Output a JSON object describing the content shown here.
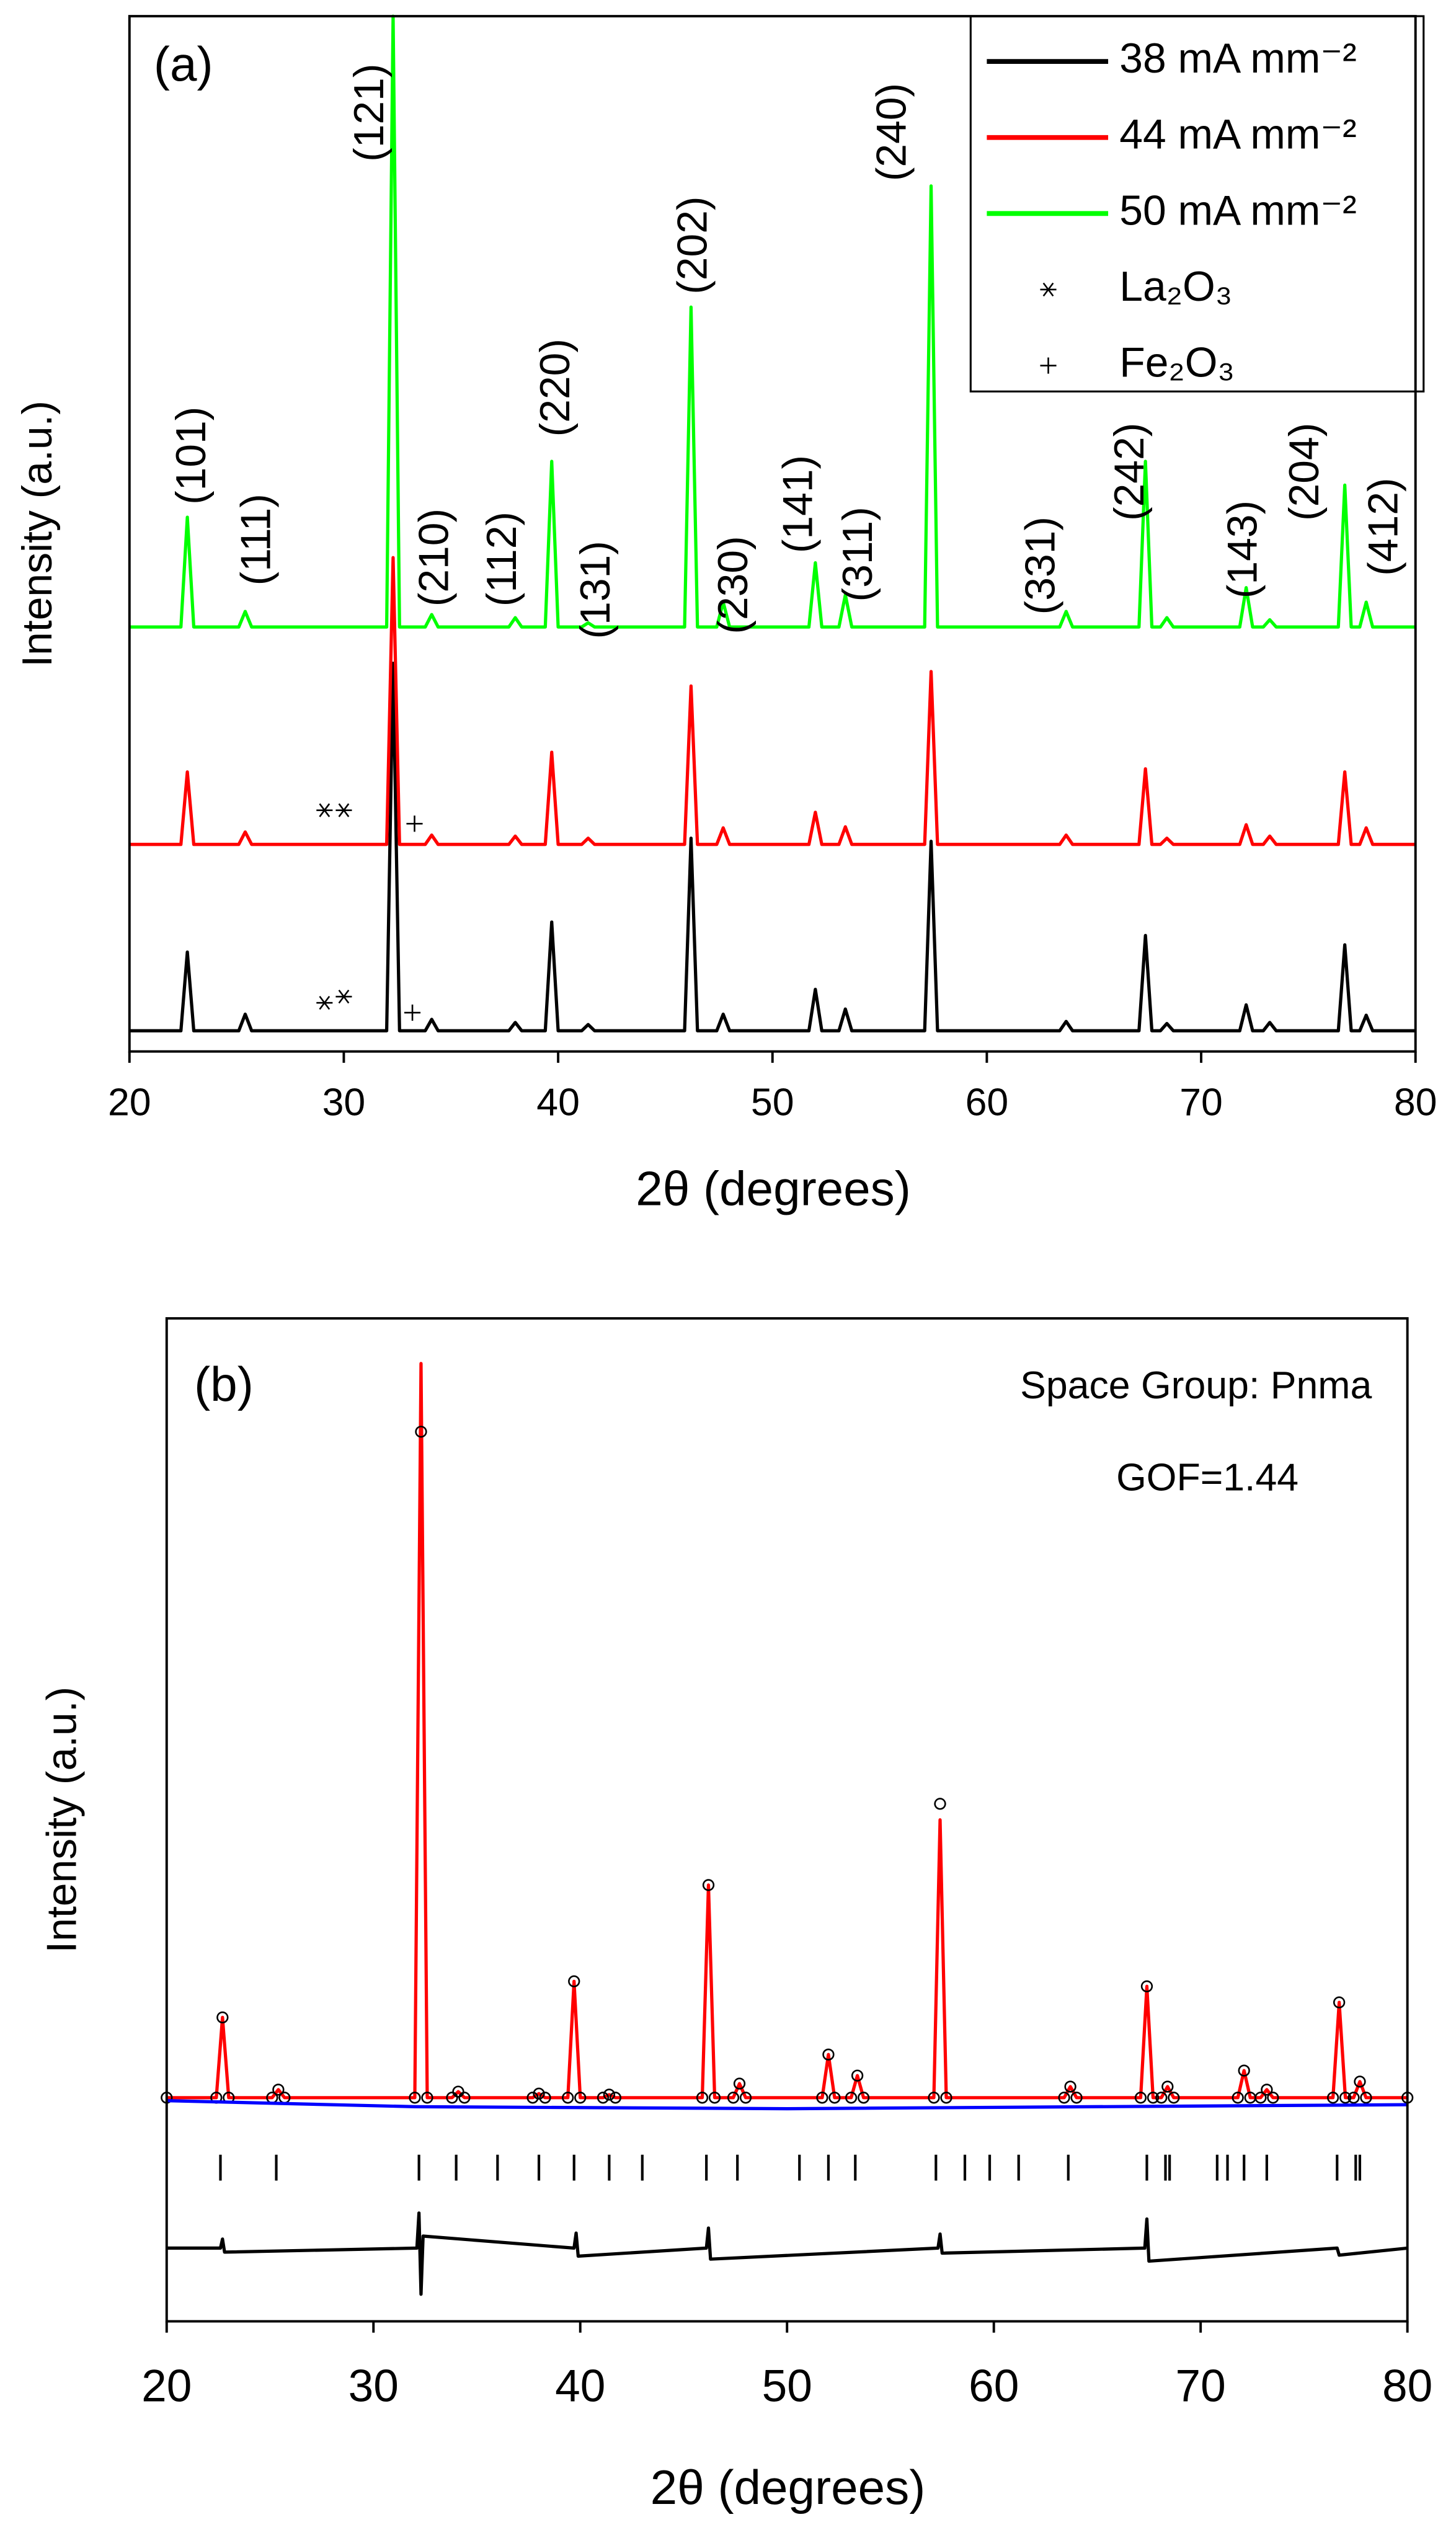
{
  "chart_data": [
    {
      "type": "line",
      "panel_label": "(a)",
      "xlabel": "2θ (degrees)",
      "ylabel": "Intensity (a.u.)",
      "xlim": [
        20,
        80
      ],
      "xticks": [
        20,
        30,
        40,
        50,
        60,
        70,
        80
      ],
      "ylim": [
        0,
        100
      ],
      "x": [
        20,
        22.4,
        22.7,
        23.0,
        25.1,
        25.4,
        25.7,
        32.0,
        32.3,
        32.6,
        33.8,
        34.1,
        34.4,
        37.7,
        38.0,
        38.3,
        39.4,
        39.7,
        40.0,
        41.1,
        41.4,
        41.7,
        45.9,
        46.2,
        46.5,
        47.4,
        47.7,
        48.0,
        51.7,
        52.0,
        52.3,
        53.1,
        53.4,
        53.7,
        57.1,
        57.4,
        57.7,
        63.4,
        63.7,
        64.0,
        67.1,
        67.4,
        67.7,
        68.1,
        68.4,
        68.7,
        71.8,
        72.1,
        72.4,
        72.9,
        73.2,
        73.5,
        76.4,
        76.7,
        77.0,
        77.4,
        77.7,
        78.0,
        80
      ],
      "series": [
        {
          "name": "38 mA mm⁻²",
          "color": "#000000",
          "values": [
            2,
            2,
            9.6,
            2,
            2,
            3.6,
            2,
            2,
            37.5,
            2,
            2,
            3.1,
            2,
            2,
            2.8,
            2,
            2,
            12.5,
            2,
            2,
            2.6,
            2,
            2,
            20.6,
            2,
            2,
            3.6,
            2,
            2,
            6.0,
            2,
            2,
            4.1,
            2,
            2,
            20.3,
            2,
            2,
            2.9,
            2,
            2,
            11.2,
            2,
            2,
            2.7,
            2,
            2,
            4.5,
            2,
            2,
            2.8,
            2,
            2,
            10.3,
            2,
            2,
            3.5,
            2,
            2
          ]
        },
        {
          "name": "44 mA mm⁻²",
          "color": "#ff0000",
          "values": [
            20,
            20,
            27.0,
            20,
            20,
            21.2,
            20,
            20,
            47.7,
            20,
            20,
            20.9,
            20,
            20,
            20.8,
            20,
            20,
            28.9,
            20,
            20,
            20.6,
            20,
            20,
            35.3,
            20,
            20,
            21.6,
            20,
            20,
            23.1,
            20,
            20,
            21.7,
            20,
            20,
            36.7,
            20,
            20,
            20.9,
            20,
            20,
            27.3,
            20,
            20,
            20.6,
            20,
            20,
            21.9,
            20,
            20,
            20.8,
            20,
            20,
            27.0,
            20,
            20,
            21.6,
            20,
            20
          ]
        },
        {
          "name": "50 mA mm⁻²",
          "color": "#00ff00",
          "values": [
            41,
            41,
            51.6,
            41,
            41,
            42.5,
            41,
            41,
            100,
            41,
            41,
            42.2,
            41,
            41,
            41.9,
            41,
            41,
            57.0,
            41,
            41,
            41.4,
            41,
            41,
            71.9,
            41,
            41,
            43.4,
            41,
            41,
            47.2,
            41,
            41,
            44.1,
            41,
            41,
            83.6,
            41,
            41,
            42.5,
            41,
            41,
            57.0,
            41,
            41,
            41.9,
            41,
            41,
            44.8,
            41,
            41,
            41.7,
            41,
            41,
            54.7,
            41,
            41,
            43.4,
            41,
            41
          ]
        }
      ],
      "markers": [
        {
          "name": "La₂O₃",
          "symbol": "asterisk",
          "x": [
            29.1,
            30.0,
            29.1,
            30.0
          ],
          "y": [
            4.7,
            5.3,
            23.3,
            23.3
          ]
        },
        {
          "name": "Fe₂O₃",
          "symbol": "plus",
          "x": [
            33.2,
            33.3
          ],
          "y": [
            3.75,
            22.0
          ]
        }
      ],
      "peak_labels": [
        "(101)",
        "(111)",
        "(121)",
        "(210)",
        "(112)",
        "(220)",
        "(131)",
        "(202)",
        "(230)",
        "(141)",
        "(311)",
        "(240)",
        "(331)",
        "(242)",
        "(143)",
        "(204)",
        "(412)"
      ]
    },
    {
      "type": "line",
      "panel_label": "(b)",
      "annotations": [
        "Space Group: Pnma",
        "GOF=1.44"
      ],
      "xlabel": "2θ (degrees)",
      "ylabel": "Intensity (a.u.)",
      "xlim": [
        20,
        80
      ],
      "xticks": [
        20,
        30,
        40,
        50,
        60,
        70,
        80
      ],
      "ylim": [
        0,
        100
      ],
      "x": [
        20,
        22.4,
        22.7,
        23.0,
        25.1,
        25.4,
        25.7,
        32.0,
        32.3,
        32.6,
        33.8,
        34.1,
        34.4,
        37.7,
        38.0,
        38.3,
        39.4,
        39.7,
        40.0,
        41.1,
        41.4,
        41.7,
        45.9,
        46.2,
        46.5,
        47.4,
        47.7,
        48.0,
        51.7,
        52.0,
        52.3,
        53.1,
        53.4,
        53.7,
        57.1,
        57.4,
        57.7,
        63.4,
        63.7,
        64.0,
        67.1,
        67.4,
        67.7,
        68.1,
        68.4,
        68.7,
        71.8,
        72.1,
        72.4,
        72.9,
        73.2,
        73.5,
        76.4,
        76.7,
        77.0,
        77.4,
        77.7,
        78.0,
        80
      ],
      "series": [
        {
          "color": "#ff0000",
          "values": [
            22.3,
            22.3,
            30.3,
            22.3,
            22.3,
            23.1,
            22.3,
            22.3,
            95.5,
            22.3,
            22.3,
            22.9,
            22.3,
            22.3,
            22.7,
            22.3,
            22.3,
            33.9,
            22.3,
            22.3,
            22.6,
            22.3,
            22.3,
            43.5,
            22.3,
            22.3,
            23.7,
            22.3,
            22.3,
            26.6,
            22.3,
            22.3,
            24.5,
            22.3,
            22.3,
            50.0,
            22.3,
            22.3,
            23.4,
            22.3,
            22.3,
            33.4,
            22.3,
            22.3,
            23.4,
            22.3,
            22.3,
            25.0,
            22.3,
            22.3,
            23.1,
            22.3,
            22.3,
            31.8,
            22.3,
            22.3,
            23.9,
            22.3,
            22.3
          ]
        },
        {
          "color": "#000000",
          "marker": "circle",
          "values": [
            22.3,
            22.3,
            30.3,
            22.3,
            22.3,
            23.1,
            22.3,
            22.3,
            88.7,
            22.3,
            22.3,
            22.9,
            22.3,
            22.3,
            22.7,
            22.3,
            22.3,
            33.9,
            22.3,
            22.3,
            22.6,
            22.3,
            22.3,
            43.5,
            22.3,
            22.3,
            23.7,
            22.3,
            22.3,
            26.6,
            22.3,
            22.3,
            24.5,
            22.3,
            22.3,
            51.6,
            22.3,
            22.3,
            23.4,
            22.3,
            22.3,
            33.4,
            22.3,
            22.3,
            23.4,
            22.3,
            22.3,
            25.0,
            22.3,
            22.3,
            23.1,
            22.3,
            22.3,
            31.8,
            22.3,
            22.3,
            23.9,
            22.3,
            22.3
          ]
        },
        {
          "color": "#0000ff",
          "x": [
            20,
            32,
            50,
            80
          ],
          "values": [
            22.0,
            21.4,
            21.2,
            21.6
          ]
        },
        {
          "color": "#000000",
          "x": [
            20,
            22.6,
            22.7,
            22.8,
            32.1,
            32.2,
            32.3,
            32.4,
            39.7,
            39.8,
            39.9,
            46.1,
            46.2,
            46.3,
            57.3,
            57.4,
            57.5,
            67.3,
            67.4,
            67.5,
            76.6,
            76.7,
            80
          ],
          "values": [
            7.3,
            7.3,
            8.2,
            6.9,
            7.3,
            10.8,
            2.7,
            8.5,
            7.3,
            8.8,
            6.5,
            7.3,
            9.3,
            6.2,
            7.3,
            8.7,
            6.8,
            7.3,
            10.2,
            6.0,
            7.3,
            6.6,
            7.3
          ]
        }
      ],
      "bragg_positions": [
        22.6,
        25.3,
        32.2,
        34.0,
        36.0,
        38.0,
        39.7,
        41.4,
        43.0,
        46.1,
        47.6,
        50.6,
        52.0,
        53.3,
        57.2,
        58.6,
        59.8,
        61.2,
        63.6,
        67.4,
        68.3,
        68.5,
        70.8,
        71.3,
        72.1,
        73.2,
        76.6,
        77.5,
        77.7
      ]
    }
  ]
}
